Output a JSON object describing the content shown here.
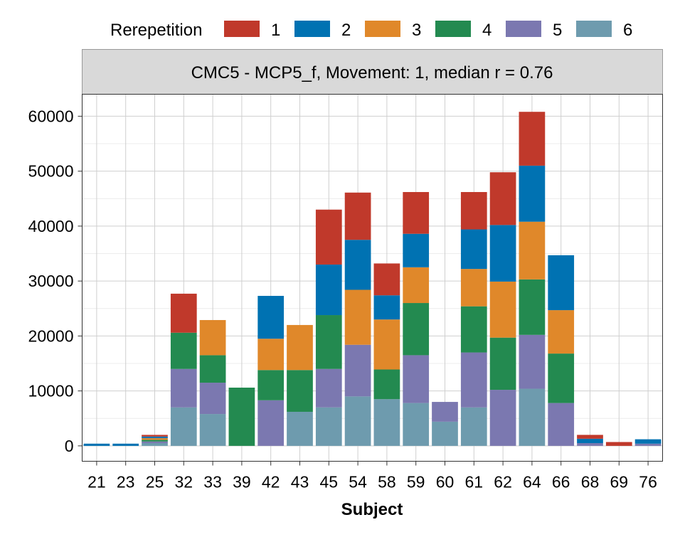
{
  "chart_data": {
    "type": "bar",
    "stacked": true,
    "facet_title": "CMC5 - MCP5_f, Movement: 1, median r = 0.76",
    "xlabel": "Subject",
    "ylabel": "",
    "ylim": [
      -2800,
      64000
    ],
    "yticks": [
      0,
      10000,
      20000,
      30000,
      40000,
      50000,
      60000
    ],
    "grid": true,
    "legend_position": "top",
    "legend_title": "Rerepetition",
    "categories": [
      "21",
      "23",
      "25",
      "32",
      "33",
      "39",
      "42",
      "43",
      "45",
      "54",
      "58",
      "59",
      "60",
      "61",
      "62",
      "64",
      "66",
      "68",
      "69",
      "76"
    ],
    "series": [
      {
        "name": "6",
        "color": "#6E9BAE",
        "values": [
          0,
          0,
          500,
          7000,
          5800,
          0,
          0,
          6200,
          7000,
          9000,
          8500,
          7800,
          4400,
          7000,
          0,
          10400,
          0,
          0,
          0,
          0
        ]
      },
      {
        "name": "5",
        "color": "#7B78B0",
        "values": [
          0,
          0,
          300,
          7000,
          5700,
          0,
          8300,
          0,
          7000,
          9400,
          0,
          8700,
          3600,
          10000,
          10200,
          9800,
          7800,
          500,
          0,
          400
        ]
      },
      {
        "name": "4",
        "color": "#238A50",
        "values": [
          0,
          0,
          300,
          6600,
          5000,
          10600,
          5500,
          7600,
          9800,
          0,
          5400,
          9500,
          0,
          8400,
          9500,
          10100,
          9000,
          0,
          0,
          0
        ]
      },
      {
        "name": "3",
        "color": "#E0882A",
        "values": [
          0,
          0,
          300,
          0,
          6400,
          0,
          5700,
          8200,
          0,
          10000,
          9100,
          6500,
          0,
          6800,
          10200,
          10500,
          7900,
          0,
          0,
          0
        ]
      },
      {
        "name": "2",
        "color": "#0072B2",
        "values": [
          400,
          400,
          300,
          0,
          0,
          0,
          7800,
          0,
          9200,
          9100,
          4400,
          6100,
          0,
          7200,
          10300,
          10200,
          10000,
          800,
          0,
          800
        ]
      },
      {
        "name": "1",
        "color": "#C0392B",
        "values": [
          0,
          0,
          300,
          7100,
          0,
          0,
          0,
          0,
          10000,
          8600,
          5800,
          7600,
          0,
          6800,
          9600,
          9800,
          0,
          700,
          700,
          0
        ]
      }
    ]
  }
}
